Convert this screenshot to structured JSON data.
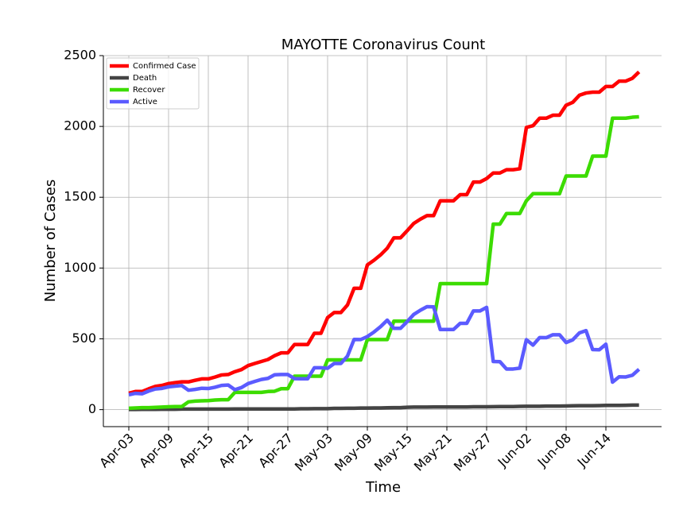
{
  "chart_data": {
    "type": "line",
    "title": "MAYOTTE Coronavirus Count",
    "x_label": "Time",
    "y_label": "Number of Cases",
    "categories": [
      "Apr-03",
      null,
      null,
      null,
      null,
      null,
      "Apr-09",
      null,
      null,
      null,
      null,
      null,
      "Apr-15",
      null,
      null,
      null,
      null,
      null,
      "Apr-21",
      null,
      null,
      null,
      null,
      null,
      "Apr-27",
      null,
      null,
      null,
      null,
      null,
      "May-03",
      null,
      null,
      null,
      null,
      null,
      "May-09",
      null,
      null,
      null,
      null,
      null,
      "May-15",
      null,
      null,
      null,
      null,
      null,
      "May-21",
      null,
      null,
      null,
      null,
      null,
      "May-27",
      null,
      null,
      null,
      null,
      null,
      "Jun-02",
      null,
      null,
      null,
      null,
      null,
      "Jun-08",
      null,
      null,
      null,
      null,
      null,
      "Jun-14",
      null,
      null,
      null,
      null,
      null
    ],
    "series": [
      {
        "name": "Confirmed Case",
        "color": "#ff0000",
        "values": [
          116,
          128,
          128,
          147,
          164,
          171,
          184,
          191,
          196,
          196,
          207,
          217,
          217,
          230,
          245,
          248,
          268,
          283,
          311,
          326,
          340,
          354,
          381,
          401,
          401,
          460,
          460,
          460,
          539,
          539,
          650,
          686,
          686,
          739,
          857,
          857,
          1022,
          1055,
          1093,
          1140,
          1213,
          1213,
          1263,
          1315,
          1345,
          1370,
          1370,
          1475,
          1475,
          1475,
          1518,
          1518,
          1607,
          1607,
          1632,
          1671,
          1671,
          1694,
          1694,
          1701,
          1993,
          2005,
          2058,
          2058,
          2079,
          2079,
          2150,
          2170,
          2220,
          2236,
          2242,
          2242,
          2282,
          2282,
          2320,
          2320,
          2340,
          2385
        ]
      },
      {
        "name": "Death",
        "color": "#444444",
        "values": [
          1,
          1,
          2,
          2,
          2,
          3,
          3,
          3,
          4,
          4,
          4,
          4,
          4,
          4,
          4,
          4,
          5,
          5,
          5,
          5,
          5,
          5,
          5,
          5,
          5,
          5,
          6,
          6,
          7,
          7,
          7,
          9,
          9,
          10,
          10,
          11,
          11,
          12,
          12,
          13,
          14,
          14,
          17,
          18,
          18,
          18,
          19,
          19,
          19,
          19,
          19,
          19,
          20,
          20,
          20,
          21,
          22,
          22,
          22,
          23,
          24,
          24,
          24,
          25,
          25,
          25,
          26,
          27,
          28,
          28,
          28,
          29,
          30,
          30,
          30,
          31,
          32,
          32
        ]
      },
      {
        "name": "Recover",
        "color": "#3cdc00",
        "values": [
          10,
          12,
          14,
          14,
          16,
          18,
          20,
          22,
          22,
          55,
          60,
          62,
          64,
          68,
          70,
          70,
          122,
          122,
          122,
          122,
          122,
          128,
          130,
          148,
          148,
          236,
          236,
          236,
          236,
          236,
          351,
          351,
          351,
          351,
          351,
          351,
          495,
          495,
          495,
          495,
          625,
          625,
          625,
          625,
          625,
          625,
          625,
          890,
          890,
          890,
          890,
          890,
          890,
          890,
          890,
          1310,
          1310,
          1385,
          1385,
          1385,
          1475,
          1525,
          1525,
          1525,
          1525,
          1525,
          1650,
          1650,
          1650,
          1650,
          1790,
          1790,
          1790,
          2058,
          2058,
          2058,
          2065,
          2068
        ]
      },
      {
        "name": "Active",
        "color": "#5b5bff",
        "values": [
          105,
          115,
          112,
          131,
          146,
          150,
          161,
          166,
          170,
          137,
          143,
          151,
          149,
          158,
          171,
          174,
          141,
          156,
          184,
          199,
          213,
          221,
          246,
          248,
          248,
          219,
          218,
          218,
          296,
          296,
          292,
          326,
          326,
          378,
          496,
          495,
          516,
          548,
          586,
          632,
          574,
          574,
          621,
          672,
          702,
          727,
          726,
          566,
          566,
          566,
          609,
          609,
          697,
          697,
          722,
          340,
          339,
          287,
          287,
          293,
          494,
          456,
          509,
          508,
          529,
          529,
          474,
          493,
          542,
          558,
          424,
          423,
          462,
          194,
          232,
          231,
          243,
          285
        ]
      }
    ],
    "ylim": [
      -120,
      2500
    ],
    "yticks": [
      0,
      500,
      1000,
      1500,
      2000,
      2500
    ],
    "grid": true,
    "legend": "upper left"
  }
}
